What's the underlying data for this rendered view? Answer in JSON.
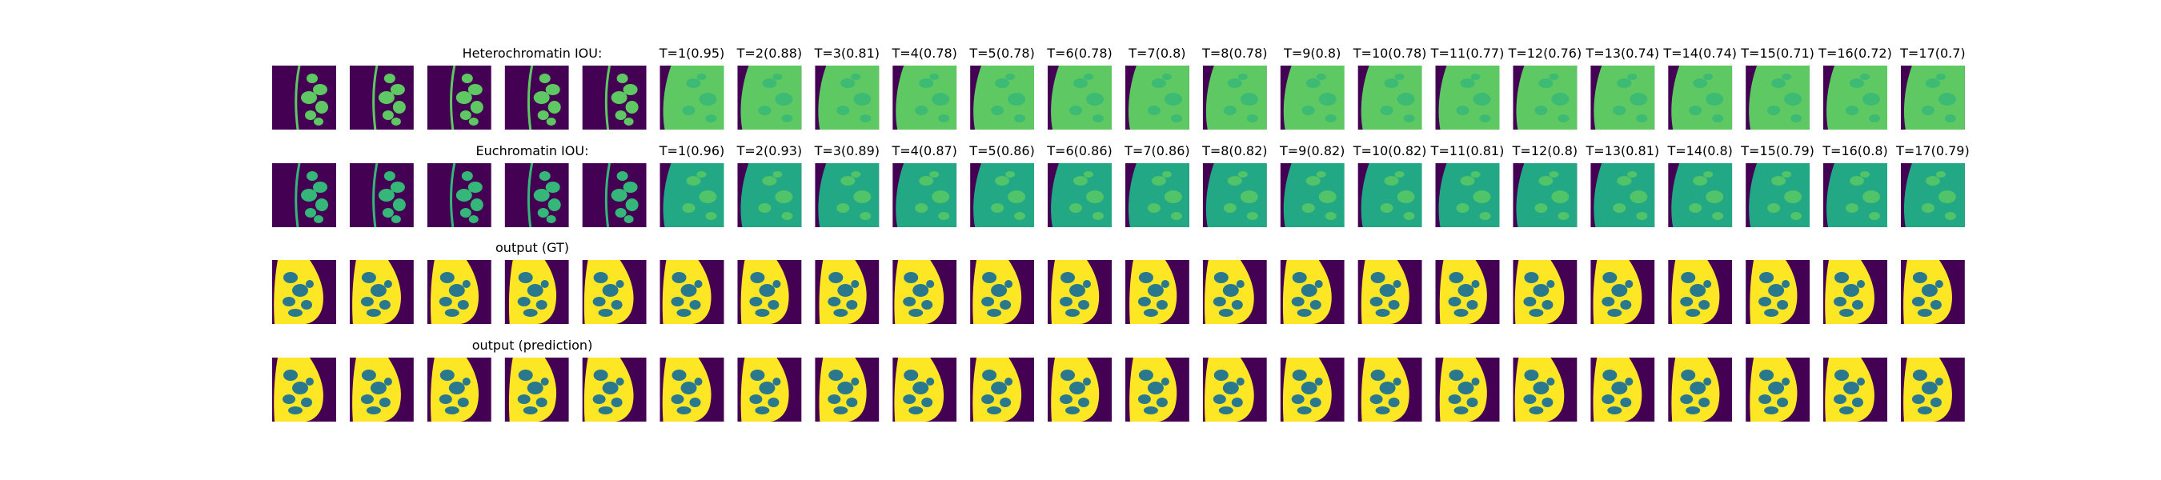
{
  "colors": {
    "background_purple": "#440154",
    "yellow": "#fde725",
    "teal": "#2a788e",
    "green_light": "#5ec962",
    "green_mid": "#35b779",
    "teal_green": "#22a884"
  },
  "chart_data": {
    "type": "heatmap",
    "layout": "grid of image thumbnails, 4 rows x 22 columns, viridis colormap",
    "rows": [
      {
        "kind": "attention",
        "title": "Heterochromatin IOU:",
        "input_frames": 5,
        "labels": [
          "T=1(0.95)",
          "T=2(0.88)",
          "T=3(0.81)",
          "T=4(0.78)",
          "T=5(0.78)",
          "T=6(0.78)",
          "T=7(0.8)",
          "T=8(0.78)",
          "T=9(0.8)",
          "T=10(0.78)",
          "T=11(0.77)",
          "T=12(0.76)",
          "T=13(0.74)",
          "T=14(0.74)",
          "T=15(0.71)",
          "T=16(0.72)",
          "T=17(0.7)"
        ],
        "iou": [
          0.95,
          0.88,
          0.81,
          0.78,
          0.78,
          0.78,
          0.8,
          0.78,
          0.8,
          0.78,
          0.77,
          0.76,
          0.74,
          0.74,
          0.71,
          0.72,
          0.7
        ]
      },
      {
        "kind": "attention",
        "title": "Euchromatin IOU:",
        "input_frames": 5,
        "labels": [
          "T=1(0.96)",
          "T=2(0.93)",
          "T=3(0.89)",
          "T=4(0.87)",
          "T=5(0.86)",
          "T=6(0.86)",
          "T=7(0.86)",
          "T=8(0.82)",
          "T=9(0.82)",
          "T=10(0.82)",
          "T=11(0.81)",
          "T=12(0.8)",
          "T=13(0.81)",
          "T=14(0.8)",
          "T=15(0.79)",
          "T=16(0.8)",
          "T=17(0.79)"
        ],
        "iou": [
          0.96,
          0.93,
          0.89,
          0.87,
          0.86,
          0.86,
          0.86,
          0.82,
          0.82,
          0.82,
          0.81,
          0.8,
          0.81,
          0.8,
          0.79,
          0.8,
          0.79
        ]
      },
      {
        "kind": "segmentation",
        "title": "output (GT)",
        "input_frames": 5,
        "labels": []
      },
      {
        "kind": "segmentation",
        "title": "output (prediction)",
        "input_frames": 5,
        "labels": []
      }
    ]
  }
}
